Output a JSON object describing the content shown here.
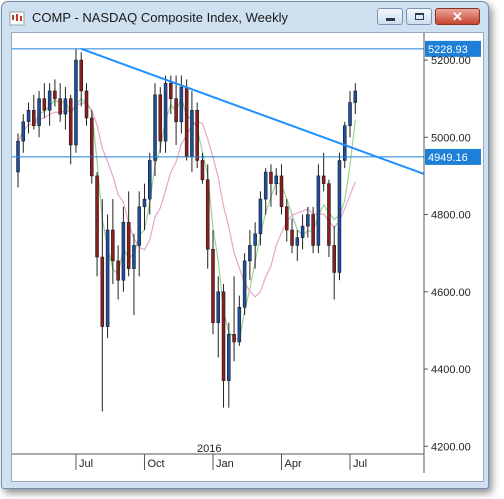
{
  "window": {
    "title": "COMP - NASDAQ Composite Index, Weekly",
    "icon": "candlestick-app-icon",
    "min_icon": "minimize-icon",
    "max_icon": "maximize-icon",
    "close_icon": "close-icon",
    "close_glyph": "✕"
  },
  "chart_data": {
    "type": "candlestick",
    "title": "COMP - NASDAQ Composite Index, Weekly",
    "x_tick_labels": [
      "Jul",
      "Oct",
      "Jan",
      "Apr",
      "Jul"
    ],
    "x_ticks_week_index": [
      11,
      24,
      37,
      50,
      63
    ],
    "year_label": "2016",
    "year_label_week_index": 37,
    "y_ticks": [
      4200,
      4400,
      4600,
      4800,
      5000,
      5200
    ],
    "y_tick_labels": [
      "4200.00",
      "4400.00",
      "4600.00",
      "4800.00",
      "5000.00",
      "5200.00"
    ],
    "ylim": [
      4180,
      5270
    ],
    "grid": false,
    "colors": {
      "up": "#1f4e9c",
      "down": "#8b1e1e",
      "trendline": "#1e90ff",
      "hline": "#1e7fd6",
      "ma_fast": "#9dd19d",
      "ma_slow": "#e8a6c6",
      "label_bg": "#1e7fd6"
    },
    "horizontal_lines": [
      {
        "label": "5228.93",
        "value": 5228.93
      },
      {
        "label": "4949.16",
        "value": 4949.16
      }
    ],
    "trendline": {
      "x1": 12,
      "y1": 5228.93,
      "x2": 72,
      "y2": 4905
    },
    "ohlc": [
      [
        4910,
        5010,
        4870,
        4990
      ],
      [
        4990,
        5060,
        4960,
        5040
      ],
      [
        5040,
        5090,
        5010,
        5070
      ],
      [
        5070,
        5110,
        5020,
        5030
      ],
      [
        5030,
        5120,
        5000,
        5100
      ],
      [
        5100,
        5140,
        5050,
        5070
      ],
      [
        5070,
        5140,
        5030,
        5120
      ],
      [
        5120,
        5150,
        5080,
        5100
      ],
      [
        5100,
        5140,
        5040,
        5060
      ],
      [
        5060,
        5130,
        5020,
        5100
      ],
      [
        5100,
        5110,
        4930,
        4980
      ],
      [
        4980,
        5230,
        4960,
        5200
      ],
      [
        5200,
        5220,
        5080,
        5120
      ],
      [
        5120,
        5140,
        5030,
        5050
      ],
      [
        5050,
        5070,
        4880,
        4900
      ],
      [
        4900,
        4910,
        4640,
        4690
      ],
      [
        4690,
        4840,
        4290,
        4510
      ],
      [
        4510,
        4800,
        4480,
        4760
      ],
      [
        4760,
        4840,
        4620,
        4680
      ],
      [
        4680,
        4720,
        4580,
        4630
      ],
      [
        4630,
        4820,
        4600,
        4780
      ],
      [
        4780,
        4860,
        4640,
        4660
      ],
      [
        4660,
        4750,
        4540,
        4720
      ],
      [
        4720,
        4860,
        4640,
        4820
      ],
      [
        4820,
        4880,
        4760,
        4840
      ],
      [
        4840,
        4960,
        4800,
        4940
      ],
      [
        4940,
        5140,
        4900,
        5110
      ],
      [
        5110,
        5130,
        4960,
        4990
      ],
      [
        4990,
        5160,
        4960,
        5140
      ],
      [
        5140,
        5160,
        5060,
        5100
      ],
      [
        5100,
        5160,
        4980,
        5040
      ],
      [
        5040,
        5160,
        5010,
        5130
      ],
      [
        5130,
        5150,
        4940,
        4950
      ],
      [
        4950,
        5120,
        4910,
        5070
      ],
      [
        5070,
        5090,
        4920,
        4940
      ],
      [
        4940,
        4960,
        4880,
        4890
      ],
      [
        4890,
        4930,
        4660,
        4710
      ],
      [
        4710,
        4760,
        4490,
        4520
      ],
      [
        4520,
        4640,
        4430,
        4600
      ],
      [
        4600,
        4620,
        4300,
        4370
      ],
      [
        4370,
        4520,
        4300,
        4490
      ],
      [
        4490,
        4640,
        4420,
        4470
      ],
      [
        4470,
        4590,
        4460,
        4560
      ],
      [
        4560,
        4700,
        4540,
        4680
      ],
      [
        4680,
        4760,
        4630,
        4720
      ],
      [
        4720,
        4780,
        4660,
        4750
      ],
      [
        4750,
        4860,
        4720,
        4840
      ],
      [
        4840,
        4920,
        4800,
        4910
      ],
      [
        4910,
        4930,
        4820,
        4880
      ],
      [
        4880,
        4920,
        4850,
        4900
      ],
      [
        4900,
        4930,
        4800,
        4820
      ],
      [
        4820,
        4840,
        4730,
        4760
      ],
      [
        4760,
        4790,
        4700,
        4720
      ],
      [
        4720,
        4760,
        4680,
        4740
      ],
      [
        4740,
        4800,
        4710,
        4770
      ],
      [
        4770,
        4820,
        4740,
        4800
      ],
      [
        4800,
        4820,
        4700,
        4720
      ],
      [
        4720,
        4930,
        4700,
        4900
      ],
      [
        4900,
        4960,
        4860,
        4880
      ],
      [
        4880,
        4890,
        4690,
        4720
      ],
      [
        4720,
        4770,
        4580,
        4650
      ],
      [
        4650,
        4960,
        4630,
        4940
      ],
      [
        4940,
        5040,
        4920,
        5030
      ],
      [
        5030,
        5120,
        5000,
        5090
      ],
      [
        5090,
        5140,
        5060,
        5120
      ]
    ]
  }
}
